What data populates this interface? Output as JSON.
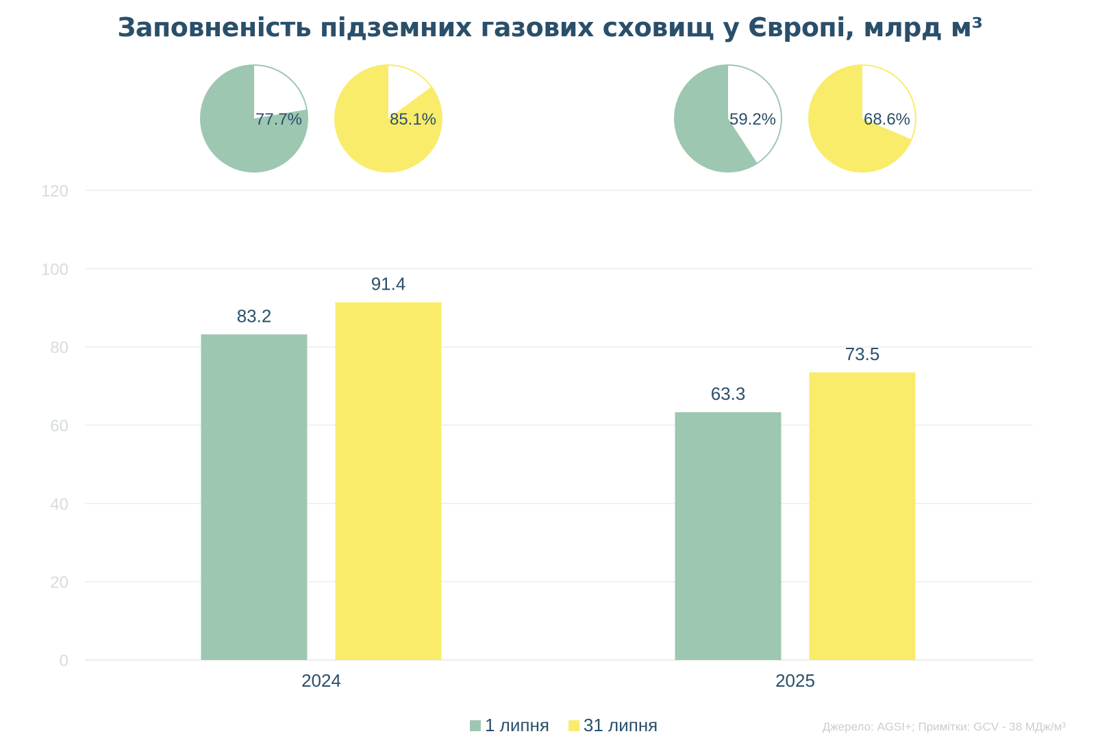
{
  "title": "Заповненість підземних газових сховищ у Європі, млрд м³",
  "source": "Джерело: AGSI+; Примітки: GCV - 38 МДж/м³",
  "colors": {
    "series1": "#9dc7b0",
    "series2": "#f9ec6b",
    "text": "#2a4f6a",
    "grid": "#ececec"
  },
  "chart_data": {
    "type": "bar",
    "categories": [
      "2024",
      "2025"
    ],
    "series": [
      {
        "name": "1 липня",
        "values": [
          83.2,
          63.3
        ],
        "fill_pct": [
          77.7,
          59.2
        ]
      },
      {
        "name": "31 липня",
        "values": [
          91.4,
          73.5
        ],
        "fill_pct": [
          85.1,
          68.6
        ]
      }
    ],
    "ylim": [
      0,
      120
    ],
    "yticks": [
      0,
      20,
      40,
      60,
      80,
      100,
      120
    ],
    "grid": true,
    "legend": "bottom-center"
  }
}
